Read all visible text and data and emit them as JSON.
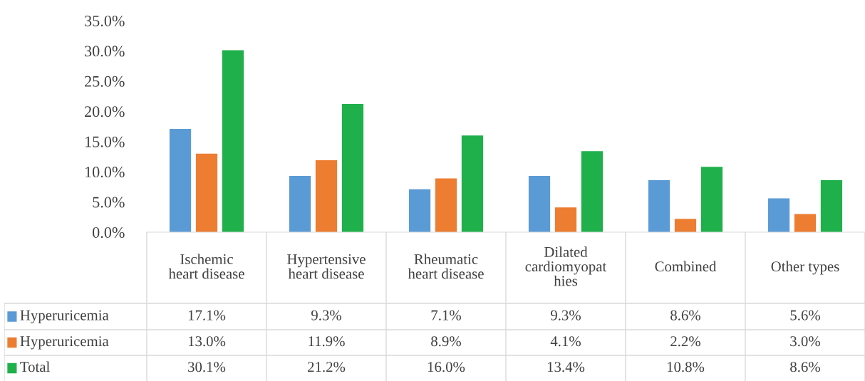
{
  "chart_data": {
    "type": "bar",
    "categories": [
      "Ischemic\nheart disease",
      "Hypertensive\nheart disease",
      "Rheumatic\nheart disease",
      "Dilated\ncardiomyopat\nhies",
      "Combined",
      "Other types"
    ],
    "series": [
      {
        "name": "Hyperuricemia",
        "color": "#5b9bd5",
        "values": [
          17.1,
          9.3,
          7.1,
          9.3,
          8.6,
          5.6
        ],
        "value_labels": [
          "17.1%",
          "9.3%",
          "7.1%",
          "9.3%",
          "8.6%",
          "5.6%"
        ]
      },
      {
        "name": "Hyperuricemia",
        "color": "#ed7d31",
        "values": [
          13.0,
          11.9,
          8.9,
          4.1,
          2.2,
          3.0
        ],
        "value_labels": [
          "13.0%",
          "11.9%",
          "8.9%",
          "4.1%",
          "2.2%",
          "3.0%"
        ]
      },
      {
        "name": "Total",
        "color": "#1fb04b",
        "values": [
          30.1,
          21.2,
          16.0,
          13.4,
          10.8,
          8.6
        ],
        "value_labels": [
          "30.1%",
          "21.2%",
          "16.0%",
          "13.4%",
          "10.8%",
          "8.6%"
        ]
      }
    ],
    "legend": "bottom left",
    "ylim": [
      0,
      35
    ],
    "yticks": [
      {
        "value": 0,
        "label": "0.0%"
      },
      {
        "value": 5,
        "label": "5.0%"
      },
      {
        "value": 10,
        "label": "10.0%"
      },
      {
        "value": 15,
        "label": "15.0%"
      },
      {
        "value": 20,
        "label": "20.0%"
      },
      {
        "value": 25,
        "label": "25.0%"
      },
      {
        "value": 30,
        "label": "30.0%"
      },
      {
        "value": 35,
        "label": "35.0%"
      }
    ],
    "grid": false
  }
}
